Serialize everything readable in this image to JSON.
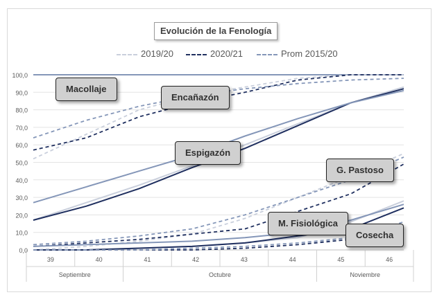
{
  "chart_data": {
    "type": "line",
    "title": "Evolución de la Fenología",
    "x": [
      39,
      40,
      41,
      42,
      43,
      44,
      45,
      46
    ],
    "x_ticks": [
      "39",
      "40",
      "41",
      "42",
      "43",
      "44",
      "45",
      "46"
    ],
    "x_groups": [
      "Septiembre",
      "Octubre",
      "Noviembre"
    ],
    "y_ticks": [
      "0,0",
      "10,0",
      "20,0",
      "30,0",
      "40,0",
      "50,0",
      "60,0",
      "70,0",
      "80,0",
      "90,0",
      "100,0"
    ],
    "ylim": [
      0,
      100
    ],
    "grid": true,
    "legend_position": "top",
    "legend": [
      {
        "name": "2019/20",
        "color": "#c9cfdc"
      },
      {
        "name": "2020/21",
        "color": "#1f2f5f"
      },
      {
        "name": "Prom 2015/20",
        "color": "#8496b8"
      }
    ],
    "annotations": [
      "Macollaje",
      "Encañazón",
      "Espigazón",
      "G. Pastoso",
      "M. Fisiológica",
      "Cosecha"
    ],
    "phases": [
      {
        "label": "Macollaje",
        "series": [
          {
            "name": "2019/20",
            "values": [
              100,
              100,
              100,
              100,
              100,
              100,
              100,
              100
            ]
          },
          {
            "name": "2020/21",
            "values": [
              100,
              100,
              100,
              100,
              100,
              100,
              100,
              100
            ]
          },
          {
            "name": "Prom 2015/20",
            "values": [
              100,
              100,
              100,
              100,
              100,
              100,
              100,
              100
            ]
          }
        ]
      },
      {
        "label": "Encañazón",
        "series": [
          {
            "name": "2019/20",
            "values": [
              52,
              66,
              80,
              88,
              93,
              98,
              100,
              100
            ]
          },
          {
            "name": "2020/21",
            "values": [
              57,
              64,
              76,
              84,
              90,
              97,
              100,
              100
            ]
          },
          {
            "name": "Prom 2015/20",
            "values": [
              64,
              74,
              82,
              88,
              92,
              95,
              97,
              98
            ]
          }
        ]
      },
      {
        "label": "Espigazón",
        "series": [
          {
            "name": "2019/20",
            "values": [
              17,
              27,
              37,
              48,
              60,
              72,
              84,
              93
            ]
          },
          {
            "name": "2020/21",
            "values": [
              17,
              25,
              35,
              47,
              58,
              71,
              84,
              92
            ]
          },
          {
            "name": "Prom 2015/20",
            "values": [
              27,
              36,
              45,
              54,
              65,
              75,
              84,
              91
            ]
          }
        ]
      },
      {
        "label": "G. Pastoso",
        "series": [
          {
            "name": "2019/20",
            "values": [
              0,
              2,
              5,
              9,
              18,
              30,
              42,
              55
            ]
          },
          {
            "name": "2020/21",
            "values": [
              2,
              4,
              6,
              9,
              12,
              22,
              32,
              49
            ]
          },
          {
            "name": "Prom 2015/20",
            "values": [
              3,
              5,
              8,
              12,
              20,
              30,
              40,
              53
            ]
          }
        ]
      },
      {
        "label": "M. Fisiológica",
        "series": [
          {
            "name": "2019/20",
            "values": [
              0,
              0,
              1,
              2,
              4,
              7,
              16,
              28
            ]
          },
          {
            "name": "2020/21",
            "values": [
              0,
              0,
              1,
              2,
              4,
              8,
              12,
              24
            ]
          },
          {
            "name": "Prom 2015/20",
            "values": [
              2,
              3,
              4,
              5,
              7,
              10,
              17,
              26
            ]
          }
        ]
      },
      {
        "label": "Cosecha",
        "series": [
          {
            "name": "2019/20",
            "values": [
              0,
              0,
              0,
              0,
              1,
              3,
              7,
              14
            ]
          },
          {
            "name": "2020/21",
            "values": [
              0,
              0,
              0,
              0,
              1,
              3,
              6,
              10
            ]
          },
          {
            "name": "Prom 2015/20",
            "values": [
              0,
              0,
              0,
              1,
              2,
              4,
              7,
              16
            ]
          }
        ]
      }
    ]
  }
}
